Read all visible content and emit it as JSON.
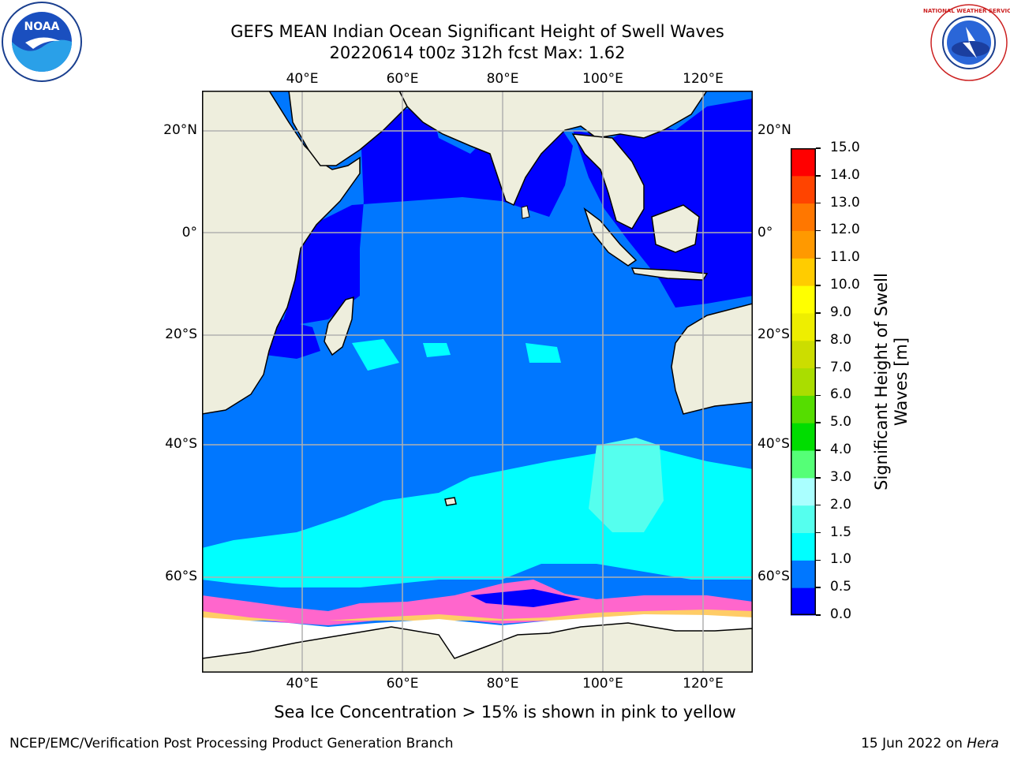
{
  "header": {
    "title_line1": "GEFS MEAN Indian Ocean Significant Height of Swell Waves",
    "title_line2": "20220614 t00z 312h fcst   Max: 1.62"
  },
  "logos": {
    "left": {
      "name": "noaa-logo",
      "text": "NOAA"
    },
    "right": {
      "name": "nws-logo",
      "text": "NATIONAL WEATHER SERVICE"
    }
  },
  "map": {
    "lon_labels": [
      "40°E",
      "60°E",
      "80°E",
      "100°E",
      "120°E"
    ],
    "lat_labels": [
      "20°N",
      "0°",
      "20°S",
      "40°S",
      "60°S"
    ],
    "colors": {
      "land": "#eeeedd",
      "ice_white": "#ffffff",
      "grid": "#b0b0b0"
    }
  },
  "colorbar": {
    "label_line1": "Significant Height of Swell",
    "label_line2": "Waves [m]",
    "ticks": [
      "0.0",
      "0.5",
      "1.0",
      "1.5",
      "2.0",
      "3.0",
      "4.0",
      "5.0",
      "6.0",
      "7.0",
      "8.0",
      "9.0",
      "10.0",
      "11.0",
      "12.0",
      "13.0",
      "14.0",
      "15.0"
    ],
    "colors": [
      "#0000ff",
      "#0077ff",
      "#00ffff",
      "#55ffee",
      "#aaffff",
      "#55ff77",
      "#00dd00",
      "#55dd00",
      "#aadd00",
      "#ccdd00",
      "#eeee00",
      "#ffff00",
      "#ffcc00",
      "#ff9900",
      "#ff7700",
      "#ff4400",
      "#ff0000"
    ]
  },
  "caption": "Sea Ice Concentration > 15% is shown in pink to yellow",
  "footer": {
    "left": "NCEP/EMC/Verification Post Processing Product Generation Branch",
    "right_date": "15 Jun 2022 on ",
    "right_host": "Hera"
  }
}
